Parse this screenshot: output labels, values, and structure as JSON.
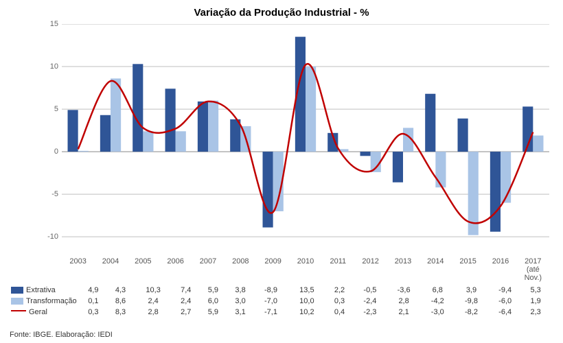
{
  "title": "Variação da Produção Industrial - %",
  "source": "Fonte: IBGE. Elaboração: IEDI",
  "chart": {
    "type": "grouped-bar-with-line",
    "categories": [
      "2003",
      "2004",
      "2005",
      "2006",
      "2007",
      "2008",
      "2009",
      "2010",
      "2011",
      "2012",
      "2013",
      "2014",
      "2015",
      "2016",
      "2017 (até Nov.)"
    ],
    "category_short": [
      "2003",
      "2004",
      "2005",
      "2006",
      "2007",
      "2008",
      "2009",
      "2010",
      "2011",
      "2012",
      "2013",
      "2014",
      "2015",
      "2016",
      "2017\n(até\nNov.)"
    ],
    "ylim": [
      -12,
      15
    ],
    "yticks": [
      -10,
      -5,
      0,
      5,
      10,
      15
    ],
    "background_color": "#ffffff",
    "grid_color": "#bfbfbf",
    "axis_color": "#888888",
    "bar_width": 0.32,
    "series": [
      {
        "name": "Extrativa",
        "legend_label": "Extrativa",
        "type": "bar",
        "color": "#2f5597",
        "values": [
          4.9,
          4.3,
          10.3,
          7.4,
          5.9,
          3.8,
          -8.9,
          13.5,
          2.2,
          -0.5,
          -3.6,
          6.8,
          3.9,
          -9.4,
          5.3
        ]
      },
      {
        "name": "Transformação",
        "legend_label": "Transformação",
        "type": "bar",
        "color": "#a9c4e6",
        "values": [
          0.1,
          8.6,
          2.4,
          2.4,
          6.0,
          3.0,
          -7.0,
          10.0,
          0.3,
          -2.4,
          2.8,
          -4.2,
          -9.8,
          -6.0,
          1.9
        ]
      },
      {
        "name": "Geral",
        "legend_label": "Geral",
        "type": "line",
        "color": "#c00000",
        "line_width": 2.5,
        "values": [
          0.3,
          8.3,
          2.8,
          2.7,
          5.9,
          3.1,
          -7.1,
          10.2,
          0.4,
          -2.3,
          2.1,
          -3.0,
          -8.2,
          -6.4,
          2.3
        ]
      }
    ]
  },
  "table": {
    "row_labels": [
      "Extrativa",
      "Transformação",
      "Geral"
    ]
  }
}
